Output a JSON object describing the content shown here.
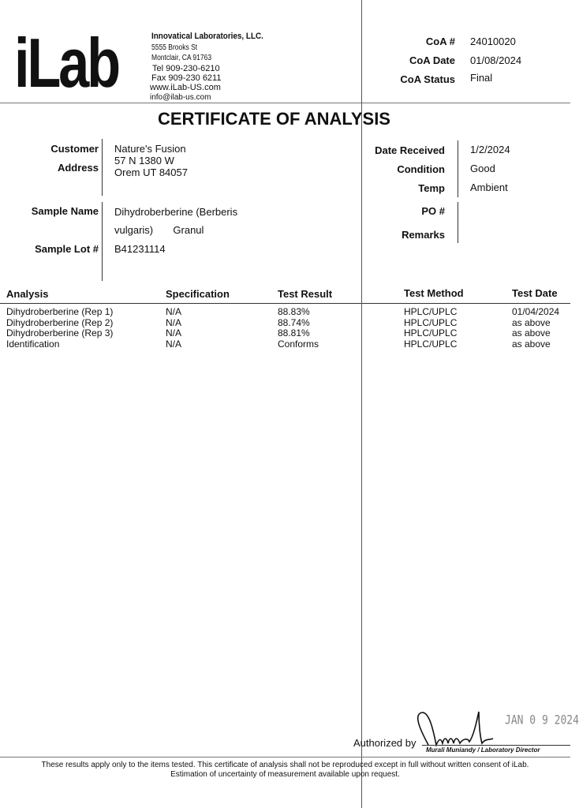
{
  "logo": "iLab",
  "company": {
    "name": "Innovatical Laboratories, LLC.",
    "street": "5555 Brooks St",
    "city": "Montclair, CA 91763",
    "tel": "Tel    909-230-6210",
    "fax": "Fax   909-230 6211",
    "web": "www.iLab-US.com",
    "email": "info@ilab-us.com"
  },
  "coa": {
    "number_label": "CoA #",
    "number": "24010020",
    "date_label": "CoA Date",
    "date": "01/08/2024",
    "status_label": "CoA Status",
    "status": "Final"
  },
  "title": "CERTIFICATE OF ANALYSIS",
  "customer": {
    "customer_label": "Customer",
    "address_label": "Address",
    "name": "Nature's Fusion",
    "address1": "57 N 1380 W",
    "address2": "Orem UT 84057"
  },
  "receipt": {
    "date_received_label": "Date Received",
    "date_received": "1/2/2024",
    "condition_label": "Condition",
    "condition": "Good",
    "temp_label": "Temp",
    "temp": "Ambient",
    "po_label": "PO #",
    "remarks_label": "Remarks"
  },
  "sample": {
    "name_label": "Sample Name",
    "name_line1": "Dihydroberberine (Berberis",
    "name_line2": "vulgaris)       Granul",
    "lot_label": "Sample Lot #",
    "lot": "B41231114"
  },
  "table": {
    "headers": [
      "Analysis",
      "Specification",
      "Test Result",
      "Test Method",
      "Test Date"
    ],
    "rows": [
      [
        "Dihydroberberine (Rep 1)",
        "N/A",
        "88.83%",
        "HPLC/UPLC",
        "01/04/2024"
      ],
      [
        "Dihydroberberine (Rep 2)",
        "N/A",
        "88.74%",
        "HPLC/UPLC",
        "as above"
      ],
      [
        "Dihydroberberine (Rep 3)",
        "N/A",
        "88.81%",
        "HPLC/UPLC",
        "as above"
      ],
      [
        "Identification",
        "N/A",
        "Conforms",
        "HPLC/UPLC",
        "as above"
      ]
    ]
  },
  "signature": {
    "authorized_label": "Authorized by",
    "signer": "Murali Muniandy / Laboratory Director",
    "stamp": "JAN 0 9 2024"
  },
  "footer": {
    "line1": "These results apply only to the items tested. This certificate of analysis shall not be reproduced except in full without written consent of iLab.",
    "line2": "Estimation of uncertainty of measurement available upon request."
  }
}
